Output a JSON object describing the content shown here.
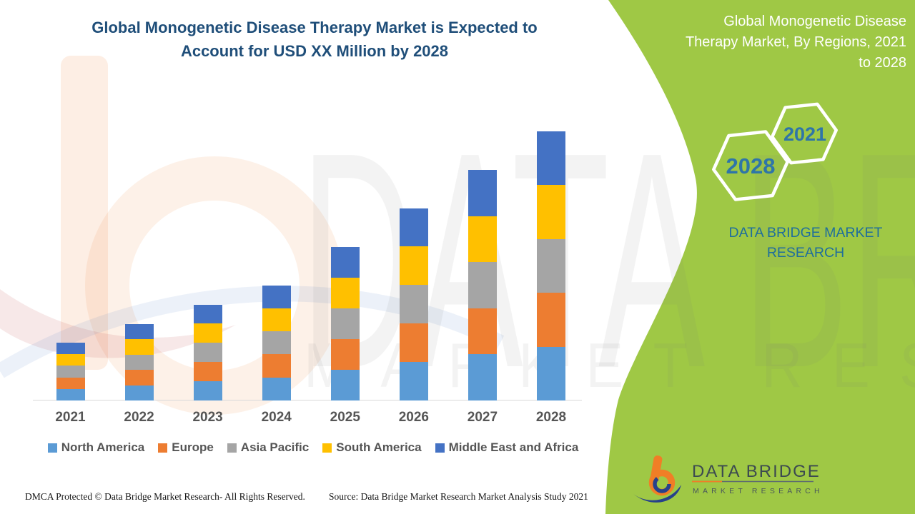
{
  "header": {
    "title_lines": [
      "Global Monogenetic Disease Therapy Market is Expected to",
      "Account for USD XX Million by 2028"
    ],
    "title_color": "#1F4E79"
  },
  "side_panel": {
    "background_color": "#9FC845",
    "title_lines": [
      "Global Monogenetic Disease",
      "Therapy Market, By Regions, 2021",
      "to 2028"
    ],
    "hexagons": [
      {
        "label": "2028"
      },
      {
        "label": "2021"
      }
    ],
    "hexagon_text_color": "#2E75A8",
    "brand_lines": [
      "DATA BRIDGE MARKET",
      "RESEARCH"
    ],
    "brand_text_color": "#1F6E9C"
  },
  "logo": {
    "title": "DATA BRIDGE",
    "subtitle": "MARKET RESEARCH"
  },
  "watermark": {
    "line1": "DATA BRIDGE",
    "line2": "MARKET RESEARCH"
  },
  "footer": {
    "dmca": "DMCA Protected © Data Bridge Market Research- All Rights Reserved.",
    "source": "Source: Data Bridge Market Research Market Analysis Study 2021"
  },
  "chart_data": {
    "type": "bar",
    "stacked": true,
    "title": "Global Monogenetic Disease Therapy Market, By Regions, 2021 to 2028",
    "categories": [
      "2021",
      "2022",
      "2023",
      "2024",
      "2025",
      "2026",
      "2027",
      "2028"
    ],
    "series": [
      {
        "name": "North America",
        "color": "#5B9BD5",
        "values": [
          0.3,
          0.4,
          0.5,
          0.6,
          0.8,
          1.0,
          1.2,
          1.4
        ]
      },
      {
        "name": "Europe",
        "color": "#ED7D31",
        "values": [
          0.3,
          0.4,
          0.5,
          0.6,
          0.8,
          1.0,
          1.2,
          1.4
        ]
      },
      {
        "name": "Asia Pacific",
        "color": "#A5A5A5",
        "values": [
          0.3,
          0.4,
          0.5,
          0.6,
          0.8,
          1.0,
          1.2,
          1.4
        ]
      },
      {
        "name": "South America",
        "color": "#FFC000",
        "values": [
          0.3,
          0.4,
          0.5,
          0.6,
          0.8,
          1.0,
          1.2,
          1.4
        ]
      },
      {
        "name": "Middle East and Africa",
        "color": "#4472C4",
        "values": [
          0.3,
          0.4,
          0.5,
          0.6,
          0.8,
          1.0,
          1.2,
          1.4
        ]
      }
    ],
    "stack_totals": [
      1.5,
      2.0,
      2.5,
      3.0,
      4.0,
      5.0,
      6.0,
      7.0
    ],
    "values_note": "Value axis not shown in figure (market size given as USD XX Million); series values are relative estimates read from bar heights",
    "xlabel": "",
    "ylabel": "",
    "grid": false,
    "value_axis_visible": false,
    "legend_position": "bottom"
  }
}
